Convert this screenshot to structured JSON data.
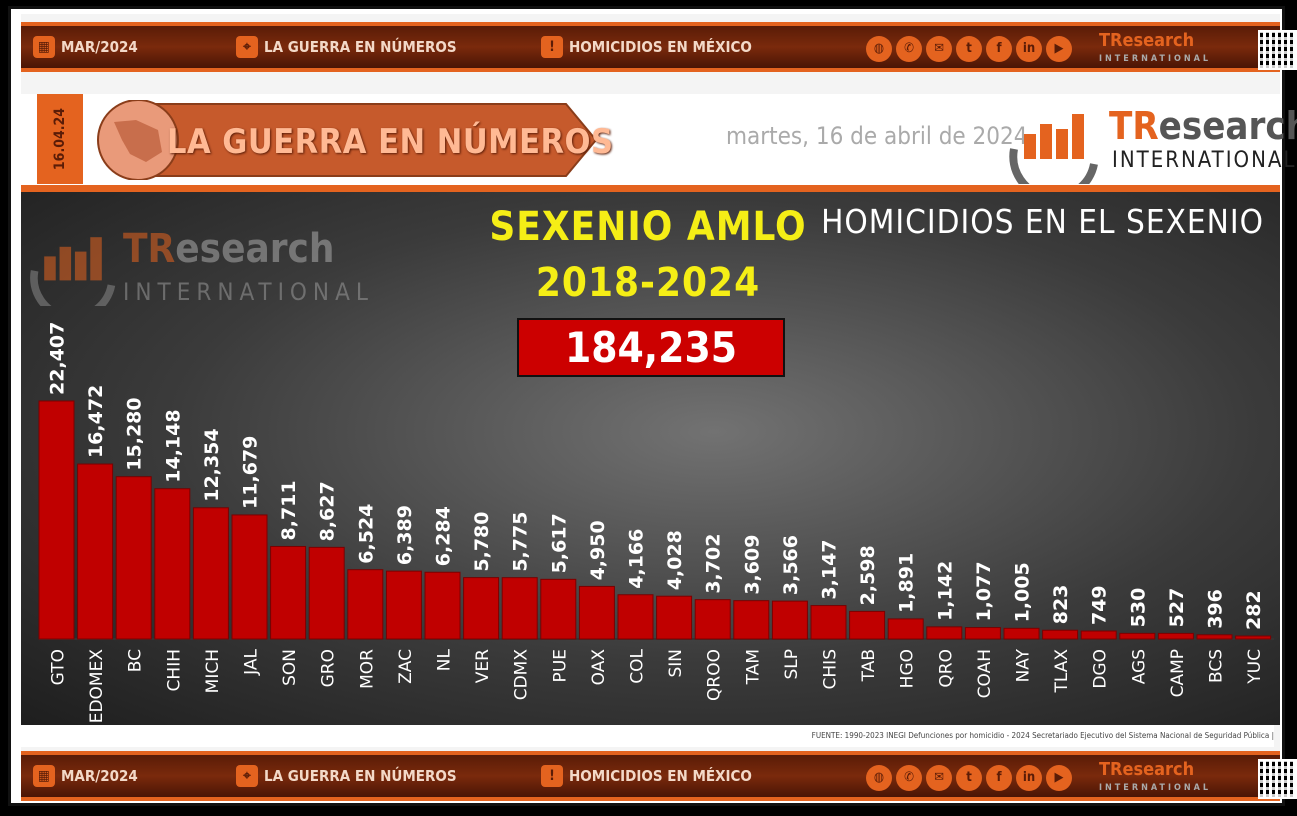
{
  "top_bar": {
    "date": "MAR/2024",
    "section": "LA GUERRA EN NÚMEROS",
    "topic": "HOMICIDIOS EN MÉXICO",
    "brand": "TResearch",
    "brand_sub": "INTERNATIONAL",
    "social_icons": [
      "globe-icon",
      "phone-icon",
      "mail-icon",
      "twitter-icon",
      "facebook-icon",
      "linkedin-icon",
      "youtube-icon"
    ]
  },
  "header": {
    "date_tab": "16.04.24",
    "title": "LA GUERRA EN NÚMEROS",
    "date_text": "martes, 16 de abril de 2024",
    "logo_prefix": "TR",
    "logo_rest": "esearch",
    "logo_sub": "INTERNATIONAL"
  },
  "colors": {
    "accent": "#e4631f",
    "bar": "#c00000",
    "title": "#f5ee16"
  },
  "chart_data": {
    "type": "bar",
    "title_line1": "SEXENIO AMLO",
    "title_line2": "2018-2024",
    "total": "184,235",
    "subtitle": "HOMICIDIOS EN EL SEXENIO",
    "categories": [
      "GTO",
      "EDOMEX",
      "BC",
      "CHIH",
      "MICH",
      "JAL",
      "SON",
      "GRO",
      "MOR",
      "ZAC",
      "NL",
      "VER",
      "CDMX",
      "PUE",
      "OAX",
      "COL",
      "SIN",
      "QROO",
      "TAM",
      "SLP",
      "CHIS",
      "TAB",
      "HGO",
      "QRO",
      "COAH",
      "NAY",
      "TLAX",
      "DGO",
      "AGS",
      "CAMP",
      "BCS",
      "YUC"
    ],
    "values": [
      22407,
      16472,
      15280,
      14148,
      12354,
      11679,
      8711,
      8627,
      6524,
      6389,
      6284,
      5780,
      5775,
      5617,
      4950,
      4166,
      4028,
      3702,
      3609,
      3566,
      3147,
      2598,
      1891,
      1142,
      1077,
      1005,
      823,
      749,
      530,
      527,
      396,
      282
    ],
    "value_labels": [
      "22,407",
      "16,472",
      "15,280",
      "14,148",
      "12,354",
      "11,679",
      "8,711",
      "8,627",
      "6,524",
      "6,389",
      "6,284",
      "5,780",
      "5,775",
      "5,617",
      "4,950",
      "4,166",
      "4,028",
      "3,702",
      "3,609",
      "3,566",
      "3,147",
      "2,598",
      "1,891",
      "1,142",
      "1,077",
      "1,005",
      "823",
      "749",
      "530",
      "527",
      "396",
      "282"
    ],
    "ylim": [
      0,
      22407
    ],
    "grid": false,
    "legend": "none"
  },
  "watermark": {
    "prefix": "TR",
    "rest": "esearch",
    "sub": "INTERNATIONAL"
  },
  "source": "FUENTE: 1990-2023 INEGI Defunciones por homicidio - 2024 Secretariado Ejecutivo del Sistema Nacional de Seguridad Pública |"
}
